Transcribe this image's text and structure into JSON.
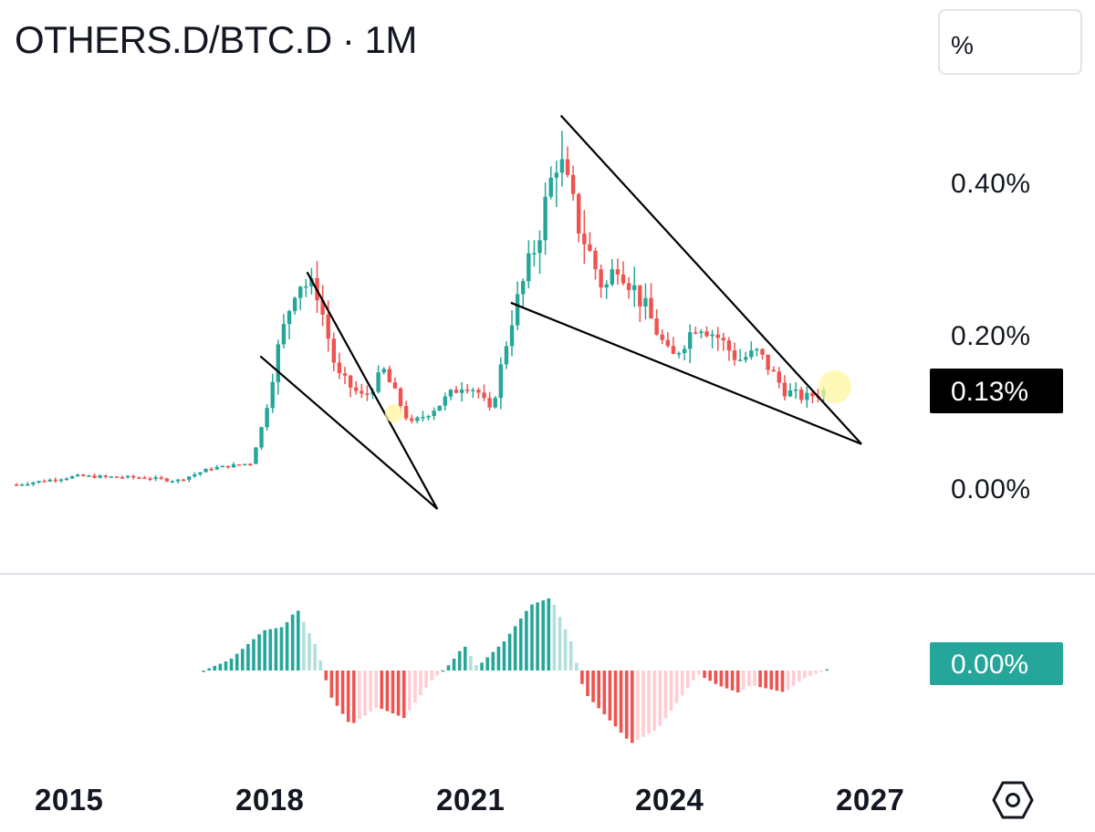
{
  "header": {
    "title": "OTHERS.D/BTC.D · 1M",
    "scale_button": "%"
  },
  "price_tag": "0.13%",
  "oscillator_tag": "0.00%",
  "settings_icon": "hexagon-settings-icon",
  "colors": {
    "up": "#26a69a",
    "down": "#ef5350",
    "up_light": "#b2dfdb",
    "down_light": "#ffcdd2",
    "highlight": "#fff59d"
  },
  "chart_data": {
    "type": "candlestick",
    "title": "OTHERS.D/BTC.D · 1M",
    "y_ticks": [
      "0.40%",
      "0.20%",
      "0.00%"
    ],
    "x_ticks": [
      "2015",
      "2018",
      "2021",
      "2024",
      "2027"
    ],
    "ylim": [
      0.0,
      0.4
    ],
    "current_value": 0.13,
    "price_anchors": [
      {
        "year": 2014.1,
        "value": 0.007
      },
      {
        "year": 2015.0,
        "value": 0.018
      },
      {
        "year": 2016.0,
        "value": 0.016
      },
      {
        "year": 2016.5,
        "value": 0.012
      },
      {
        "year": 2017.0,
        "value": 0.028
      },
      {
        "year": 2017.6,
        "value": 0.035
      },
      {
        "year": 2017.8,
        "value": 0.09
      },
      {
        "year": 2018.0,
        "value": 0.18
      },
      {
        "year": 2018.3,
        "value": 0.275
      },
      {
        "year": 2018.6,
        "value": 0.26
      },
      {
        "year": 2018.9,
        "value": 0.15
      },
      {
        "year": 2019.3,
        "value": 0.12
      },
      {
        "year": 2019.6,
        "value": 0.155
      },
      {
        "year": 2020.0,
        "value": 0.085
      },
      {
        "year": 2020.4,
        "value": 0.11
      },
      {
        "year": 2020.8,
        "value": 0.14
      },
      {
        "year": 2021.0,
        "value": 0.13
      },
      {
        "year": 2021.2,
        "value": 0.1
      },
      {
        "year": 2021.5,
        "value": 0.22
      },
      {
        "year": 2021.9,
        "value": 0.33
      },
      {
        "year": 2022.2,
        "value": 0.44
      },
      {
        "year": 2022.5,
        "value": 0.35
      },
      {
        "year": 2022.9,
        "value": 0.26
      },
      {
        "year": 2023.1,
        "value": 0.3
      },
      {
        "year": 2023.5,
        "value": 0.24
      },
      {
        "year": 2023.9,
        "value": 0.17
      },
      {
        "year": 2024.3,
        "value": 0.22
      },
      {
        "year": 2024.6,
        "value": 0.2
      },
      {
        "year": 2024.9,
        "value": 0.17
      },
      {
        "year": 2025.2,
        "value": 0.18
      },
      {
        "year": 2025.6,
        "value": 0.13
      },
      {
        "year": 2025.9,
        "value": 0.12
      },
      {
        "year": 2026.2,
        "value": 0.13
      }
    ],
    "trendlines": [
      {
        "from": {
          "year": 2017.75,
          "value": 0.175
        },
        "to": {
          "year": 2020.4,
          "value": -0.025
        }
      },
      {
        "from": {
          "year": 2018.45,
          "value": 0.285
        },
        "to": {
          "year": 2020.4,
          "value": -0.025
        }
      },
      {
        "from": {
          "year": 2021.5,
          "value": 0.245
        },
        "to": {
          "year": 2026.75,
          "value": 0.06
        }
      },
      {
        "from": {
          "year": 2022.25,
          "value": 0.49
        },
        "to": {
          "year": 2026.75,
          "value": 0.06
        }
      }
    ],
    "highlights": [
      {
        "year": 2019.75,
        "value": 0.1
      },
      {
        "year": 2026.35,
        "value": 0.135
      }
    ],
    "oscillator": {
      "ylim": [
        -1,
        1
      ],
      "anchors": [
        {
          "year": 2016.9,
          "value": 0.0
        },
        {
          "year": 2017.3,
          "value": 0.15
        },
        {
          "year": 2017.8,
          "value": 0.55
        },
        {
          "year": 2018.1,
          "value": 0.6
        },
        {
          "year": 2018.3,
          "value": 0.85
        },
        {
          "year": 2018.6,
          "value": 0.3
        },
        {
          "year": 2018.8,
          "value": -0.35
        },
        {
          "year": 2019.1,
          "value": -0.75
        },
        {
          "year": 2019.5,
          "value": -0.5
        },
        {
          "year": 2019.9,
          "value": -0.65
        },
        {
          "year": 2020.3,
          "value": -0.15
        },
        {
          "year": 2020.6,
          "value": 0.1
        },
        {
          "year": 2020.8,
          "value": 0.35
        },
        {
          "year": 2021.0,
          "value": 0.05
        },
        {
          "year": 2021.4,
          "value": 0.4
        },
        {
          "year": 2021.8,
          "value": 0.9
        },
        {
          "year": 2022.1,
          "value": 1.0
        },
        {
          "year": 2022.4,
          "value": 0.4
        },
        {
          "year": 2022.6,
          "value": -0.3
        },
        {
          "year": 2023.0,
          "value": -0.7
        },
        {
          "year": 2023.3,
          "value": -1.0
        },
        {
          "year": 2023.7,
          "value": -0.8
        },
        {
          "year": 2024.1,
          "value": -0.3
        },
        {
          "year": 2024.3,
          "value": -0.05
        },
        {
          "year": 2024.6,
          "value": -0.2
        },
        {
          "year": 2024.9,
          "value": -0.3
        },
        {
          "year": 2025.1,
          "value": -0.2
        },
        {
          "year": 2025.6,
          "value": -0.3
        },
        {
          "year": 2025.9,
          "value": -0.1
        },
        {
          "year": 2026.2,
          "value": 0.0
        },
        {
          "year": 2026.3,
          "value": 0.05
        }
      ]
    }
  }
}
